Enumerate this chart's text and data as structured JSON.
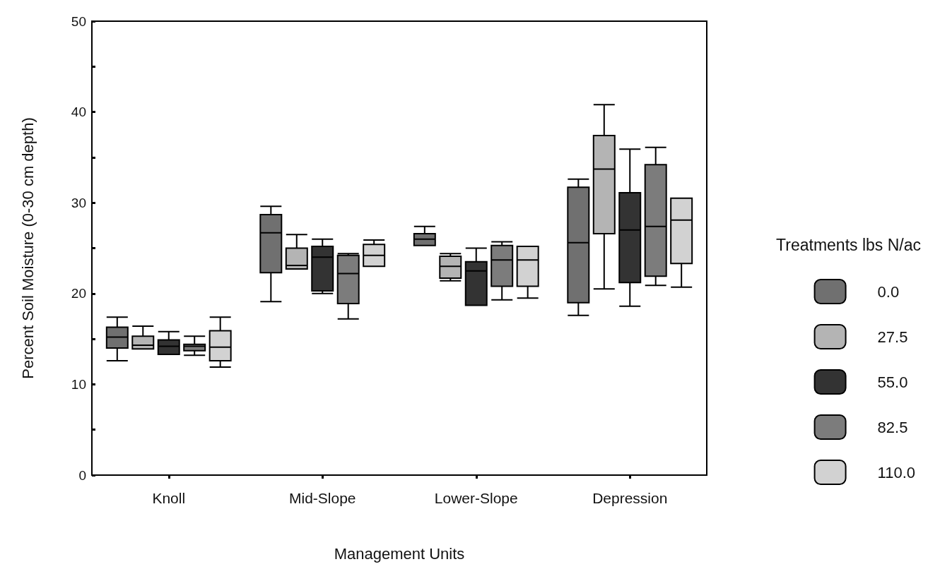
{
  "chart_data": {
    "type": "box",
    "xlabel": "Management Units",
    "ylabel": "Percent Soil Moisture (0-30 cm depth)",
    "legend_title": "Treatments lbs N/ac",
    "legend": "right",
    "grid": false,
    "categories": [
      "Knoll",
      "Mid-Slope",
      "Lower-Slope",
      "Depression"
    ],
    "ylim": [
      0,
      50
    ],
    "yticks": [
      0,
      {
        "value": 5,
        "label": null
      },
      10,
      {
        "value": 15,
        "label": null
      },
      20,
      {
        "value": 25,
        "label": null
      },
      30,
      {
        "value": 35,
        "label": null
      },
      40,
      {
        "value": 45,
        "label": null
      },
      50
    ],
    "series": [
      {
        "name": "0.0",
        "color": "#707070",
        "boxes": [
          {
            "low": 12.6,
            "q1": 14.0,
            "median": 15.2,
            "q3": 16.3,
            "high": 17.4
          },
          {
            "low": 19.1,
            "q1": 22.3,
            "median": 26.7,
            "q3": 28.7,
            "high": 29.6
          },
          {
            "low": 25.3,
            "q1": 25.3,
            "median": 26.0,
            "q3": 26.6,
            "high": 27.4
          },
          {
            "low": 17.6,
            "q1": 19.0,
            "median": 25.6,
            "q3": 31.7,
            "high": 32.6
          }
        ]
      },
      {
        "name": "27.5",
        "color": "#b4b4b4",
        "boxes": [
          {
            "low": 13.9,
            "q1": 13.9,
            "median": 14.3,
            "q3": 15.3,
            "high": 16.4
          },
          {
            "low": 22.7,
            "q1": 22.7,
            "median": 23.1,
            "q3": 25.0,
            "high": 26.5
          },
          {
            "low": 21.4,
            "q1": 21.7,
            "median": 23.0,
            "q3": 24.1,
            "high": 24.4
          },
          {
            "low": 20.5,
            "q1": 26.6,
            "median": 33.7,
            "q3": 37.4,
            "high": 40.8
          }
        ]
      },
      {
        "name": "55.0",
        "color": "#333333",
        "boxes": [
          {
            "low": 13.3,
            "q1": 13.3,
            "median": 14.2,
            "q3": 14.9,
            "high": 15.8
          },
          {
            "low": 20.0,
            "q1": 20.3,
            "median": 24.0,
            "q3": 25.2,
            "high": 26.0
          },
          {
            "low": 18.7,
            "q1": 18.7,
            "median": 22.5,
            "q3": 23.5,
            "high": 25.0
          },
          {
            "low": 18.6,
            "q1": 21.2,
            "median": 27.0,
            "q3": 31.1,
            "high": 35.9
          }
        ]
      },
      {
        "name": "82.5",
        "color": "#7c7c7c",
        "boxes": [
          {
            "low": 13.2,
            "q1": 13.7,
            "median": 14.2,
            "q3": 14.4,
            "high": 15.3
          },
          {
            "low": 17.2,
            "q1": 18.9,
            "median": 22.2,
            "q3": 24.2,
            "high": 24.4
          },
          {
            "low": 19.3,
            "q1": 20.8,
            "median": 23.7,
            "q3": 25.3,
            "high": 25.7
          },
          {
            "low": 20.9,
            "q1": 21.9,
            "median": 27.4,
            "q3": 34.2,
            "high": 36.1
          }
        ]
      },
      {
        "name": "110.0",
        "color": "#d2d2d2",
        "boxes": [
          {
            "low": 11.9,
            "q1": 12.6,
            "median": 14.1,
            "q3": 15.9,
            "high": 17.4
          },
          {
            "low": 23.0,
            "q1": 23.0,
            "median": 24.2,
            "q3": 25.4,
            "high": 25.9
          },
          {
            "low": 19.5,
            "q1": 20.8,
            "median": 23.7,
            "q3": 25.2,
            "high": 25.2
          },
          {
            "low": 20.7,
            "q1": 23.3,
            "median": 28.1,
            "q3": 30.5,
            "high": 30.5
          }
        ]
      }
    ]
  }
}
